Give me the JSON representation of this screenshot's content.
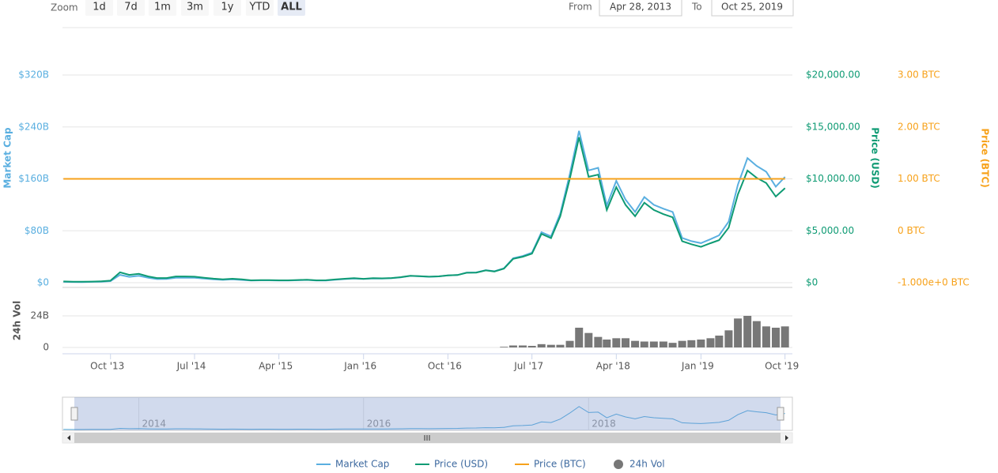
{
  "range_selector": {
    "label": "Zoom",
    "buttons": [
      "1d",
      "7d",
      "1m",
      "3m",
      "1y",
      "YTD",
      "ALL"
    ],
    "selected": 6,
    "from_label": "From",
    "from": "Apr 28, 2013",
    "to_label": "To",
    "to": "Oct 25, 2019"
  },
  "chart_data": {
    "type": "line",
    "y_label": "Market Cap",
    "y2_label": "Price (USD)",
    "y3_label": "Price (BTC)",
    "y4_label": "24h Vol",
    "xlim": [
      "2013-04-28",
      "2019-10-25"
    ],
    "xticks": [
      {
        "value": "2013-10",
        "label": "Oct '13"
      },
      {
        "value": "2014-07",
        "label": "Jul '14"
      },
      {
        "value": "2015-04",
        "label": "Apr '15"
      },
      {
        "value": "2016-01",
        "label": "Jan '16"
      },
      {
        "value": "2016-10",
        "label": "Oct '16"
      },
      {
        "value": "2017-07",
        "label": "Jul '17"
      },
      {
        "value": "2018-04",
        "label": "Apr '18"
      },
      {
        "value": "2019-01",
        "label": "Jan '19"
      },
      {
        "value": "2019-10",
        "label": "Oct '19"
      }
    ],
    "ylim": [
      0,
      320000000000
    ],
    "yticks": [
      {
        "value": 0,
        "label": "$0"
      },
      {
        "value": 80000000000,
        "label": "$80B"
      },
      {
        "value": 160000000000,
        "label": "$160B"
      },
      {
        "value": 240000000000,
        "label": "$240B"
      },
      {
        "value": 320000000000,
        "label": "$320B"
      }
    ],
    "y2lim": [
      0,
      20000
    ],
    "y2ticks": [
      {
        "value": 0,
        "label": "$0"
      },
      {
        "value": 5000,
        "label": "$5,000.00"
      },
      {
        "value": 10000,
        "label": "$10,000.00"
      },
      {
        "value": 15000,
        "label": "$15,000.00"
      },
      {
        "value": 20000,
        "label": "$20,000.00"
      }
    ],
    "y3lim": [
      -1,
      3
    ],
    "y3ticks": [
      {
        "value": -1,
        "label": "-1.000e+0 BTC"
      },
      {
        "value": 0,
        "label": "0 BTC"
      },
      {
        "value": 1,
        "label": "1.00 BTC"
      },
      {
        "value": 2,
        "label": "2.00 BTC"
      },
      {
        "value": 3,
        "label": "3.00 BTC"
      }
    ],
    "y4lim": [
      0,
      24000000000
    ],
    "y4ticks": [
      0,
      {
        "value": 24000000000,
        "label": "24B"
      }
    ],
    "grid": true,
    "x": [
      "2013-05",
      "2013-06",
      "2013-07",
      "2013-08",
      "2013-09",
      "2013-10",
      "2013-11",
      "2013-12",
      "2014-01",
      "2014-02",
      "2014-03",
      "2014-04",
      "2014-05",
      "2014-06",
      "2014-07",
      "2014-08",
      "2014-09",
      "2014-10",
      "2014-11",
      "2014-12",
      "2015-01",
      "2015-02",
      "2015-03",
      "2015-04",
      "2015-05",
      "2015-06",
      "2015-07",
      "2015-08",
      "2015-09",
      "2015-10",
      "2015-11",
      "2015-12",
      "2016-01",
      "2016-02",
      "2016-03",
      "2016-04",
      "2016-05",
      "2016-06",
      "2016-07",
      "2016-08",
      "2016-09",
      "2016-10",
      "2016-11",
      "2016-12",
      "2017-01",
      "2017-02",
      "2017-03",
      "2017-04",
      "2017-05",
      "2017-06",
      "2017-07",
      "2017-08",
      "2017-09",
      "2017-10",
      "2017-11",
      "2017-12",
      "2018-01",
      "2018-02",
      "2018-03",
      "2018-04",
      "2018-05",
      "2018-06",
      "2018-07",
      "2018-08",
      "2018-09",
      "2018-10",
      "2018-11",
      "2018-12",
      "2019-01",
      "2019-02",
      "2019-03",
      "2019-04",
      "2019-05",
      "2019-06",
      "2019-07",
      "2019-08",
      "2019-09",
      "2019-10"
    ],
    "series": [
      {
        "name": "Market Cap",
        "color": "#5aafe0",
        "axis": "y",
        "kind": "line",
        "values": [
          1300000000.0,
          1100000000.0,
          1000000000.0,
          1300000000.0,
          1500000000.0,
          2400000000.0,
          12000000000.0,
          9000000000.0,
          10600000000.0,
          7500000000.0,
          5600000000.0,
          5700000000.0,
          7600000000.0,
          7700000000.0,
          7500000000.0,
          6300000000.0,
          5100000000.0,
          4400000000.0,
          5100000000.0,
          4300000000.0,
          3300000000.0,
          3600000000.0,
          3600000000.0,
          3300000000.0,
          3300000000.0,
          3800000000.0,
          4200000000.0,
          3400000000.0,
          3400000000.0,
          4600000000.0,
          5600000000.0,
          6400000000.0,
          5700000000.0,
          6600000000.0,
          6400000000.0,
          7000000000.0,
          8300000000.0,
          10500000000.0,
          9800000000.0,
          9100000000.0,
          9700000000.0,
          11200000000.0,
          11800000000.0,
          15400000000.0,
          15800000000.0,
          19400000000.0,
          17600000000.0,
          22100000000.0,
          37700000000.0,
          41100000000.0,
          46200000000.0,
          77800000000.0,
          71400000000.0,
          106600000000.0,
          167000000000.0,
          234000000000.0,
          173000000000.0,
          177000000000.0,
          119000000000.0,
          157000000000.0,
          128000000000.0,
          109000000000.0,
          132000000000.0,
          120000000000.0,
          114000000000.0,
          109000000000.0,
          69000000000.0,
          64000000000.0,
          61000000000.0,
          67000000000.0,
          73000000000.0,
          94000000000.0,
          151000000000.0,
          192000000000.0,
          180000000000.0,
          171000000000.0,
          148000000000.0,
          163000000000.0
        ]
      },
      {
        "name": "Price (USD)",
        "color": "#0f9b74",
        "axis": "y2",
        "kind": "line",
        "values": [
          120,
          100,
          90,
          110,
          130,
          200,
          1000,
          750,
          850,
          600,
          450,
          450,
          600,
          600,
          580,
          480,
          390,
          330,
          380,
          320,
          230,
          250,
          250,
          230,
          230,
          260,
          290,
          230,
          235,
          310,
          380,
          430,
          370,
          430,
          415,
          450,
          530,
          670,
          620,
          575,
          610,
          700,
          740,
          960,
          970,
          1190,
          1080,
          1350,
          2300,
          2500,
          2800,
          4700,
          4300,
          6400,
          10000,
          14000,
          10200,
          10400,
          7000,
          9200,
          7500,
          6400,
          7700,
          7000,
          6600,
          6300,
          4000,
          3700,
          3450,
          3800,
          4100,
          5300,
          8500,
          10800,
          10100,
          9600,
          8300,
          9100
        ]
      },
      {
        "name": "Price (BTC)",
        "color": "#f7a21b",
        "axis": "y3",
        "kind": "line",
        "values": [
          1,
          1,
          1,
          1,
          1,
          1,
          1,
          1,
          1,
          1,
          1,
          1,
          1,
          1,
          1,
          1,
          1,
          1,
          1,
          1,
          1,
          1,
          1,
          1,
          1,
          1,
          1,
          1,
          1,
          1,
          1,
          1,
          1,
          1,
          1,
          1,
          1,
          1,
          1,
          1,
          1,
          1,
          1,
          1,
          1,
          1,
          1,
          1,
          1,
          1,
          1,
          1,
          1,
          1,
          1,
          1,
          1,
          1,
          1,
          1,
          1,
          1,
          1,
          1,
          1,
          1,
          1,
          1,
          1,
          1,
          1,
          1,
          1,
          1,
          1,
          1,
          1,
          1
        ]
      },
      {
        "name": "24h Vol",
        "color": "#777777",
        "axis": "y4",
        "kind": "bar",
        "values": [
          null,
          null,
          null,
          null,
          null,
          null,
          null,
          null,
          null,
          null,
          null,
          null,
          null,
          null,
          null,
          null,
          null,
          null,
          null,
          null,
          null,
          null,
          null,
          null,
          null,
          null,
          null,
          null,
          null,
          null,
          null,
          null,
          null,
          null,
          null,
          null,
          null,
          null,
          null,
          null,
          null,
          null,
          null,
          null,
          null,
          null,
          null,
          500000000.0,
          1500000000.0,
          1500000000.0,
          1200000000.0,
          2500000000.0,
          2000000000.0,
          2000000000.0,
          5000000000.0,
          15000000000.0,
          11000000000.0,
          8000000000.0,
          6000000000.0,
          7000000000.0,
          7000000000.0,
          5000000000.0,
          4500000000.0,
          4500000000.0,
          4500000000.0,
          3500000000.0,
          5000000000.0,
          5500000000.0,
          6000000000.0,
          7000000000.0,
          9000000000.0,
          13000000000.0,
          22000000000.0,
          24000000000.0,
          20000000000.0,
          16000000000.0,
          15000000000.0,
          16000000000.0
        ]
      }
    ],
    "navigator_ticks": [
      2014,
      2016,
      2018
    ]
  }
}
